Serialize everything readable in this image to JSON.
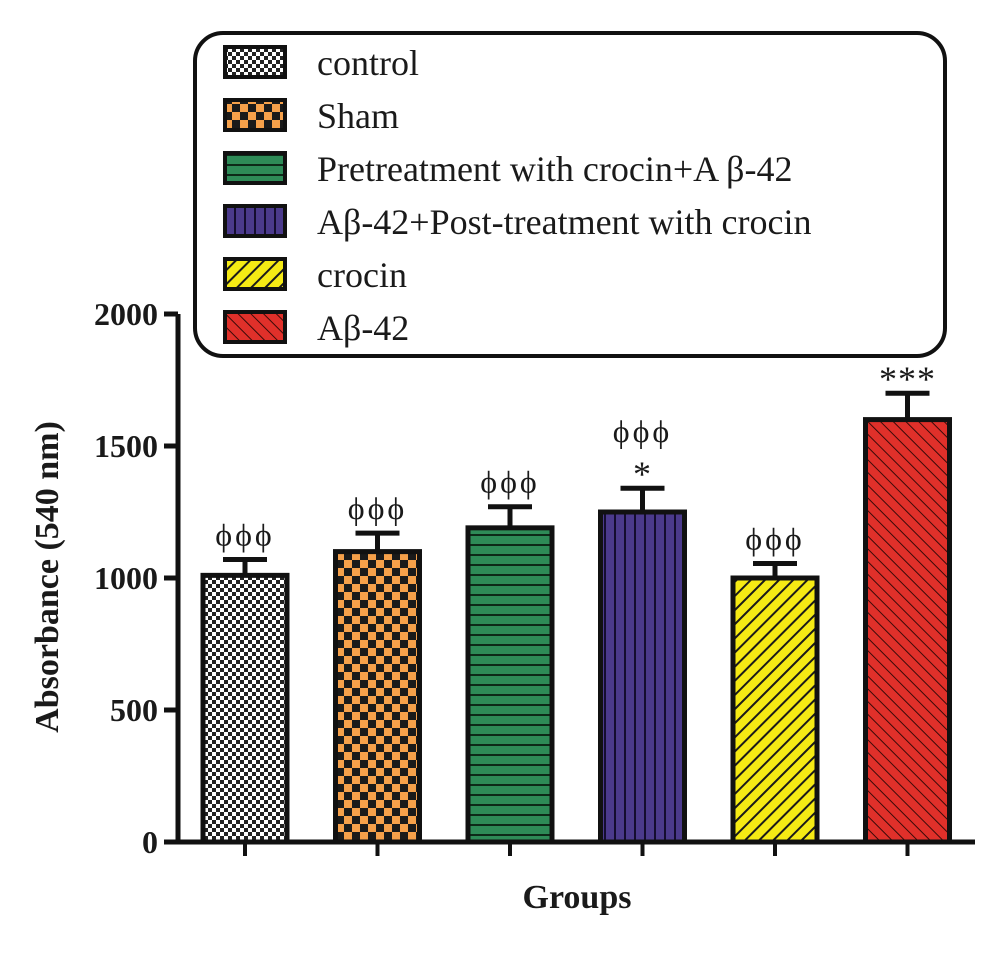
{
  "chart_data": {
    "type": "bar",
    "categories": [
      "control",
      "Sham",
      "Pretreatment with crocin+A β-42",
      "Aβ-42+Post-treatment with crocin",
      "crocin",
      "Aβ-42"
    ],
    "values": [
      1010,
      1100,
      1190,
      1250,
      1000,
      1600
    ],
    "errors": [
      60,
      70,
      80,
      90,
      55,
      100
    ],
    "annotations": [
      "ϕϕϕ",
      "ϕϕϕ",
      "ϕϕϕ",
      "ϕϕϕ\n*",
      "ϕϕϕ",
      "***"
    ],
    "title": "",
    "xlabel": "Groups",
    "ylabel": "Absorbance (540 nm)",
    "ylim": [
      0,
      2000
    ],
    "yticks": [
      0,
      500,
      1000,
      1500,
      2000
    ],
    "legend": {
      "placement": "top",
      "entries": [
        {
          "label": "control",
          "pattern": "checker-fine",
          "color": "#ffffff"
        },
        {
          "label": "Sham",
          "pattern": "checker",
          "color": "#f5a04a"
        },
        {
          "label": "Pretreatment with crocin+A β-42",
          "pattern": "horizontal",
          "color": "#2e8b57"
        },
        {
          "label": "Aβ-42+Post-treatment with crocin",
          "pattern": "vertical",
          "color": "#4b3a8c"
        },
        {
          "label": "crocin",
          "pattern": "diag-up",
          "color": "#f5ea14"
        },
        {
          "label": "Aβ-42",
          "pattern": "diag-down",
          "color": "#e0302a"
        }
      ]
    },
    "grid": false
  }
}
